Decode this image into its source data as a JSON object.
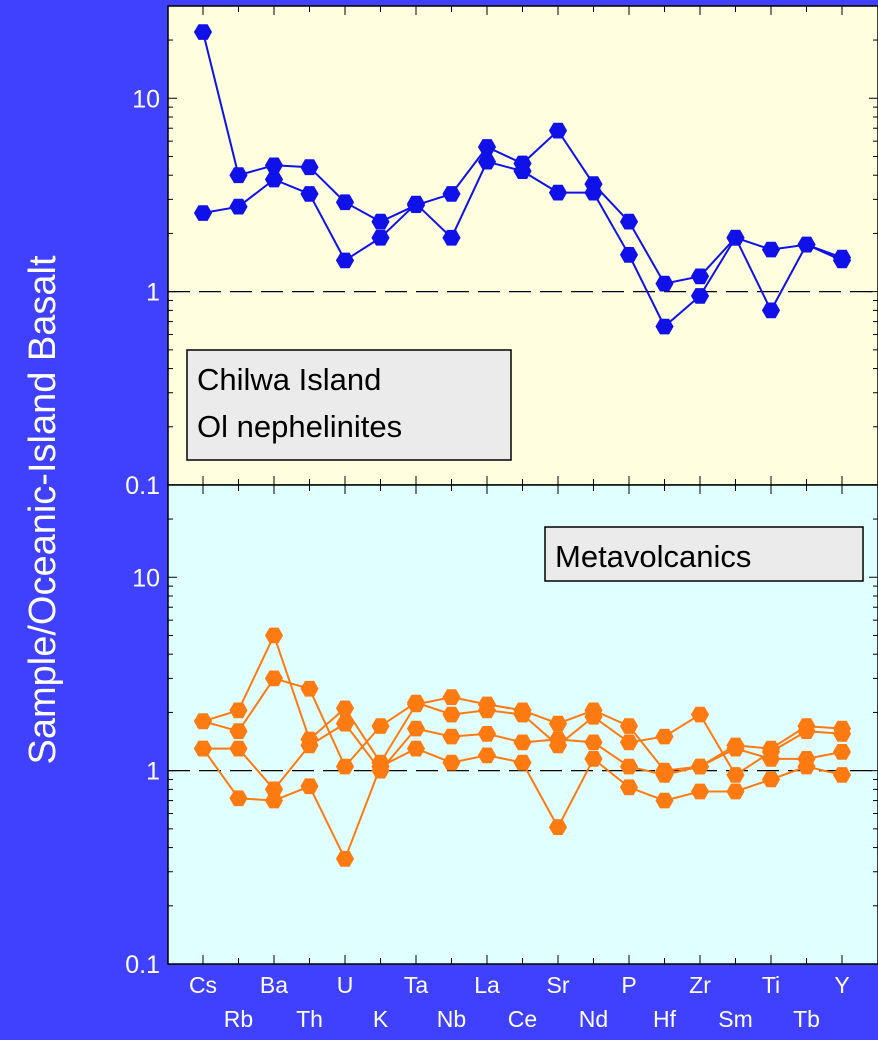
{
  "chart_data": {
    "type": "line",
    "ylabel": "Sample/Oceanic-Island Basalt",
    "yscale": "log",
    "categories": [
      "Cs",
      "Rb",
      "Ba",
      "Th",
      "U",
      "K",
      "Ta",
      "Nb",
      "La",
      "Ce",
      "Sr",
      "Nd",
      "P",
      "Hf",
      "Zr",
      "Sm",
      "Ti",
      "Tb",
      "Y"
    ],
    "panels": [
      {
        "id": "top",
        "label_lines": [
          "Chilwa Island",
          "Ol nephelinites"
        ],
        "ylim": [
          0.1,
          30
        ],
        "yticks": [
          0.1,
          1,
          10
        ],
        "ytick_labels": [
          "0.1",
          "1",
          "10"
        ],
        "reference_line": 1,
        "background": "#ffffe0",
        "series_color": "#1010e8",
        "series": [
          {
            "values": [
              22,
              4.0,
              4.5,
              4.4,
              2.9,
              2.3,
              2.8,
              3.2,
              5.6,
              4.6,
              6.8,
              3.6,
              2.3,
              1.1,
              1.2,
              1.9,
              1.65,
              1.75,
              1.5
            ]
          },
          {
            "values": [
              2.55,
              2.75,
              3.8,
              3.2,
              1.45,
              1.9,
              2.85,
              1.9,
              4.7,
              4.2,
              3.25,
              3.25,
              1.55,
              0.66,
              0.95,
              1.9,
              0.8,
              1.75,
              1.45
            ]
          }
        ]
      },
      {
        "id": "bottom",
        "label_lines": [
          "Metavolcanics"
        ],
        "ylim": [
          0.1,
          30
        ],
        "yticks": [
          0.1,
          1,
          10
        ],
        "ytick_labels": [
          "0.1",
          "1",
          "10"
        ],
        "reference_line": 1,
        "background": "#e0ffff",
        "series_color": "#ff7a10",
        "series": [
          {
            "values": [
              1.8,
              2.05,
              5.0,
              1.45,
              2.1,
              1.1,
              2.2,
              2.4,
              2.2,
              2.05,
              1.75,
              2.05,
              1.7,
              1.0,
              1.05,
              1.35,
              1.3,
              1.7,
              1.65
            ]
          },
          {
            "values": [
              1.8,
              1.6,
              3.0,
              2.65,
              1.05,
              1.7,
              2.25,
              1.95,
              2.05,
              1.95,
              1.35,
              1.9,
              1.4,
              1.5,
              1.95,
              0.95,
              1.25,
              1.6,
              1.55
            ]
          },
          {
            "values": [
              1.3,
              1.3,
              0.8,
              1.35,
              1.75,
              1.0,
              1.65,
              1.5,
              1.55,
              1.4,
              1.45,
              1.4,
              1.05,
              0.95,
              1.05,
              1.3,
              1.15,
              1.15,
              1.25
            ]
          },
          {
            "values": [
              1.3,
              0.72,
              0.7,
              0.83,
              0.35,
              1.05,
              1.3,
              1.1,
              1.2,
              1.1,
              0.51,
              1.15,
              0.82,
              0.7,
              0.78,
              0.78,
              0.9,
              1.05,
              0.95
            ]
          }
        ]
      }
    ]
  }
}
